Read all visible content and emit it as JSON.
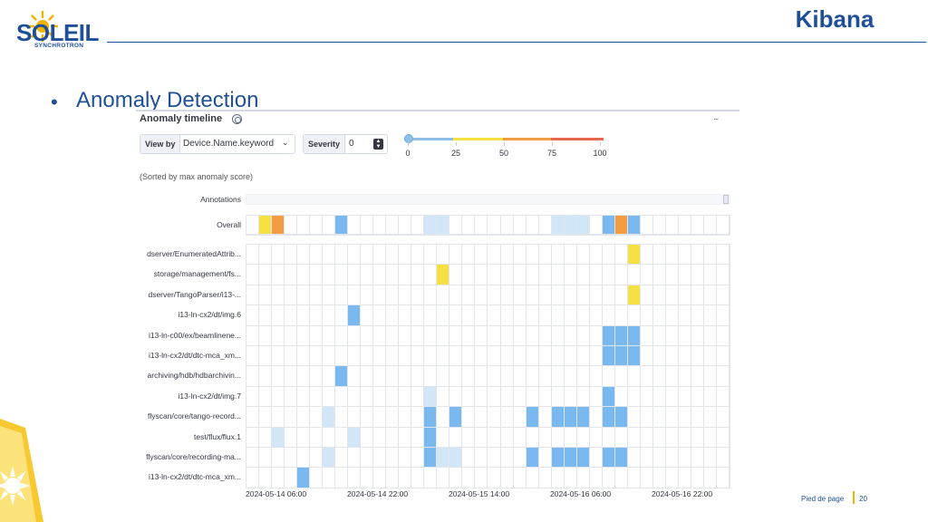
{
  "slide": {
    "logo_text": "SOLEIL",
    "logo_subtext": "SYNCHROTRON",
    "title": "Kibana",
    "bullet": "Anomaly Detection",
    "footer_text": "Pied de page",
    "page_number": "20",
    "colors": {
      "brand_blue": "#1f4f96",
      "accent_yellow": "#f0b400"
    }
  },
  "panel": {
    "title": "Anomaly timeline",
    "menu_icon": "...",
    "view_by_label": "View by",
    "view_by_value": "Device.Name.keyword",
    "severity_label": "Severity",
    "severity_value": "0",
    "severity_scale_ticks": [
      "0",
      "25",
      "50",
      "75",
      "100"
    ],
    "sorted_note": "(Sorted by max anomaly score)",
    "annotations_label": "Annotations",
    "overall_label": "Overall",
    "colors": {
      "critical": "#e7664c",
      "major": "#f49c41",
      "minor": "#f5e142",
      "warning": "#7ab8f0",
      "low": "#d1e6f7",
      "empty": "#ffffff"
    },
    "time_columns": 38,
    "x_labels": [
      "2024-05-14 06:00",
      "2024-05-14 22:00",
      "2024-05-15 14:00",
      "2024-05-16 06:00",
      "2024-05-16 22:00"
    ],
    "overall_cells": [
      {
        "col": 1,
        "sev": "minor"
      },
      {
        "col": 2,
        "sev": "major"
      },
      {
        "col": 7,
        "sev": "warning"
      },
      {
        "col": 14,
        "sev": "low"
      },
      {
        "col": 15,
        "sev": "low"
      },
      {
        "col": 24,
        "sev": "low"
      },
      {
        "col": 25,
        "sev": "low"
      },
      {
        "col": 26,
        "sev": "low"
      },
      {
        "col": 28,
        "sev": "warning"
      },
      {
        "col": 29,
        "sev": "major"
      },
      {
        "col": 30,
        "sev": "warning"
      }
    ],
    "swimlanes": [
      {
        "label": "dserver/EnumeratedAttrib...",
        "cells": [
          {
            "col": 30,
            "sev": "minor"
          }
        ]
      },
      {
        "label": "storage/management/fs...",
        "cells": [
          {
            "col": 15,
            "sev": "minor"
          }
        ]
      },
      {
        "label": "dserver/TangoParser/i13-...",
        "cells": [
          {
            "col": 30,
            "sev": "minor"
          }
        ]
      },
      {
        "label": "i13-ln-cx2/dt/img.6",
        "cells": [
          {
            "col": 8,
            "sev": "warning"
          }
        ]
      },
      {
        "label": "i13-ln-c00/ex/beamlinene...",
        "cells": [
          {
            "col": 28,
            "sev": "warning"
          },
          {
            "col": 29,
            "sev": "warning"
          },
          {
            "col": 30,
            "sev": "warning"
          }
        ]
      },
      {
        "label": "i13-ln-cx2/dt/dtc-mca_xm...",
        "cells": [
          {
            "col": 28,
            "sev": "warning"
          },
          {
            "col": 29,
            "sev": "warning"
          },
          {
            "col": 30,
            "sev": "warning"
          }
        ]
      },
      {
        "label": "archiving/hdb/hdbarchivin...",
        "cells": [
          {
            "col": 7,
            "sev": "warning"
          }
        ]
      },
      {
        "label": "i13-ln-cx2/dt/img.7",
        "cells": [
          {
            "col": 14,
            "sev": "low"
          },
          {
            "col": 28,
            "sev": "warning"
          }
        ]
      },
      {
        "label": "flyscan/core/tango-record...",
        "cells": [
          {
            "col": 6,
            "sev": "low"
          },
          {
            "col": 14,
            "sev": "warning"
          },
          {
            "col": 16,
            "sev": "warning"
          },
          {
            "col": 22,
            "sev": "warning"
          },
          {
            "col": 24,
            "sev": "warning"
          },
          {
            "col": 25,
            "sev": "warning"
          },
          {
            "col": 26,
            "sev": "warning"
          },
          {
            "col": 28,
            "sev": "warning"
          },
          {
            "col": 29,
            "sev": "warning"
          }
        ]
      },
      {
        "label": "test/flux/flux.1",
        "cells": [
          {
            "col": 2,
            "sev": "low"
          },
          {
            "col": 8,
            "sev": "low"
          },
          {
            "col": 14,
            "sev": "warning"
          }
        ]
      },
      {
        "label": "flyscan/core/recording-ma...",
        "cells": [
          {
            "col": 6,
            "sev": "low"
          },
          {
            "col": 14,
            "sev": "warning"
          },
          {
            "col": 15,
            "sev": "low"
          },
          {
            "col": 16,
            "sev": "low"
          },
          {
            "col": 22,
            "sev": "warning"
          },
          {
            "col": 24,
            "sev": "warning"
          },
          {
            "col": 25,
            "sev": "warning"
          },
          {
            "col": 26,
            "sev": "warning"
          },
          {
            "col": 28,
            "sev": "warning"
          },
          {
            "col": 29,
            "sev": "warning"
          }
        ]
      },
      {
        "label": "i13-ln-cx2/dt/dtc-mca_xm...",
        "cells": [
          {
            "col": 4,
            "sev": "warning"
          }
        ]
      }
    ]
  }
}
